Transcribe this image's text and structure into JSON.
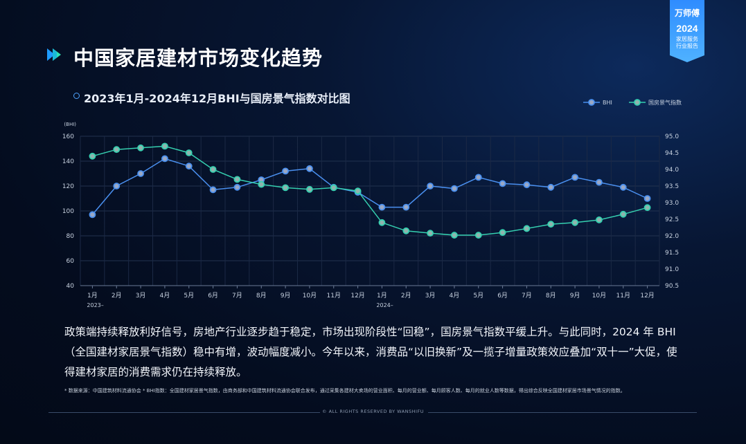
{
  "header": {
    "title": "中国家居建材市场变化趋势"
  },
  "badge": {
    "brand": "万师傅",
    "year": "2024",
    "line1": "家居服务",
    "line2": "行业报告"
  },
  "section": {
    "subtitle": "2023年1月-2024年12月BHI与国房景气指数对比图"
  },
  "colors": {
    "bhi": "#4a90f0",
    "index": "#35d0b0",
    "accent_play1": "#1e9bff",
    "accent_play2": "#2ee0b4"
  },
  "chart_data": {
    "type": "line",
    "categories": [
      "1月",
      "2月",
      "3月",
      "4月",
      "5月",
      "6月",
      "7月",
      "8月",
      "9月",
      "10月",
      "11月",
      "12月",
      "1月",
      "2月",
      "3月",
      "4月",
      "5月",
      "6月",
      "7月",
      "8月",
      "9月",
      "10月",
      "11月",
      "12月"
    ],
    "year_labels": [
      {
        "index": 0,
        "label": "2023–"
      },
      {
        "index": 12,
        "label": "2024–"
      }
    ],
    "y_left": {
      "unit_label": "(BHI)",
      "min": 40,
      "max": 160,
      "ticks": [
        40,
        60,
        80,
        100,
        120,
        140,
        160
      ]
    },
    "y_right": {
      "min": 90.5,
      "max": 95.0,
      "ticks": [
        "90.5",
        "91.0",
        "91.5",
        "92.0",
        "92.5",
        "93.0",
        "93.5",
        "94.0",
        "94.5",
        "95.0"
      ]
    },
    "series": [
      {
        "name": "BHI",
        "axis": "left",
        "values": [
          97,
          120,
          130,
          142,
          136,
          117,
          119,
          125,
          132,
          134,
          119,
          115,
          103,
          103,
          120,
          118,
          127,
          122,
          121,
          119,
          127,
          123,
          119,
          110
        ]
      },
      {
        "name": "国房景气指数",
        "axis": "right",
        "values": [
          94.4,
          94.6,
          94.65,
          94.7,
          94.5,
          94.0,
          93.7,
          93.55,
          93.45,
          93.4,
          93.45,
          93.35,
          92.4,
          92.15,
          92.08,
          92.02,
          92.02,
          92.1,
          92.22,
          92.35,
          92.4,
          92.48,
          92.65,
          92.85
        ]
      }
    ],
    "grid": true,
    "legend_position": "top-right"
  },
  "body": {
    "paragraph": "政策端持续释放利好信号，房地产行业逐步趋于稳定，市场出现阶段性“回稳”，国房景气指数平缓上升。与此同时，2024 年 BHI（全国建材家居景气指数）稳中有增，波动幅度减小。今年以来，消费品“以旧换新”及一揽子增量政策效应叠加“双十一”大促，使得建材家居的消费需求仍在持续释放。",
    "note": "* 数据来源：中国建筑材料流通协会 * BHI指数：全国建材家居景气指数，由商务部和中国建筑材料流通协会联合发布，通过采集各建材大卖场的营业面积、每月的营业额、每月顾客人数、每月的就业人数等数据，得出综合反映全国建材家居市场景气情况的指数。"
  },
  "footer": {
    "text": "© ALL RIGHTS RESERVED BY WANSHIFU"
  }
}
